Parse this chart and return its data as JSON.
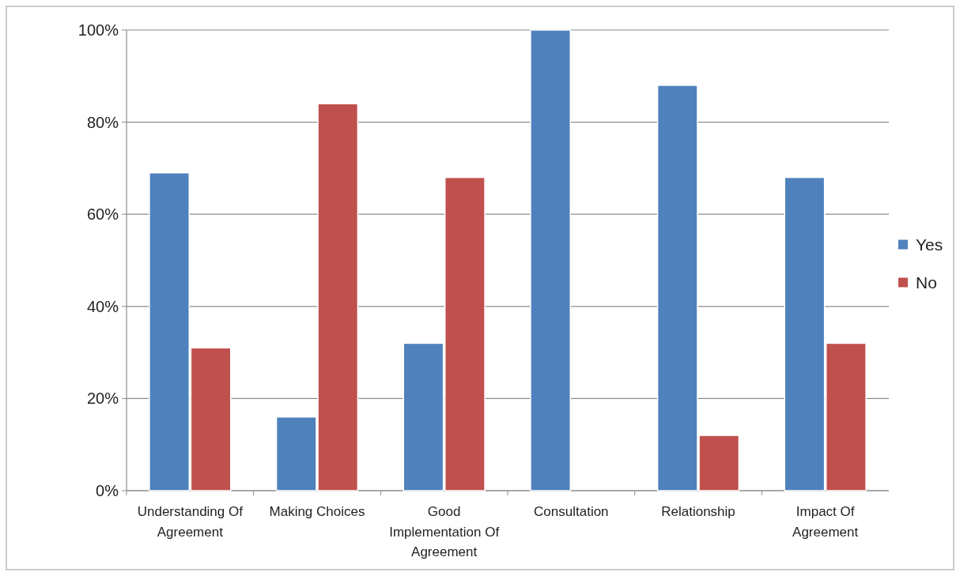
{
  "chart_data": {
    "type": "bar",
    "categories": [
      "Understanding Of Agreement",
      "Making Choices",
      "Good Implementation Of Agreement",
      "Consultation",
      "Relationship",
      "Impact Of Agreement"
    ],
    "series": [
      {
        "name": "Yes",
        "color": "#4f81bd",
        "values": [
          69,
          16,
          32,
          100,
          88,
          68
        ]
      },
      {
        "name": "No",
        "color": "#c0504d",
        "values": [
          31,
          84,
          68,
          0,
          12,
          32
        ]
      }
    ],
    "ylim": [
      0,
      100
    ],
    "yticks": [
      {
        "value": 0,
        "label": "0%"
      },
      {
        "value": 20,
        "label": "20%"
      },
      {
        "value": 40,
        "label": "40%"
      },
      {
        "value": 60,
        "label": "60%"
      },
      {
        "value": 80,
        "label": "80%"
      },
      {
        "value": 100,
        "label": "100%"
      }
    ],
    "grid": "y",
    "legend": "right"
  }
}
